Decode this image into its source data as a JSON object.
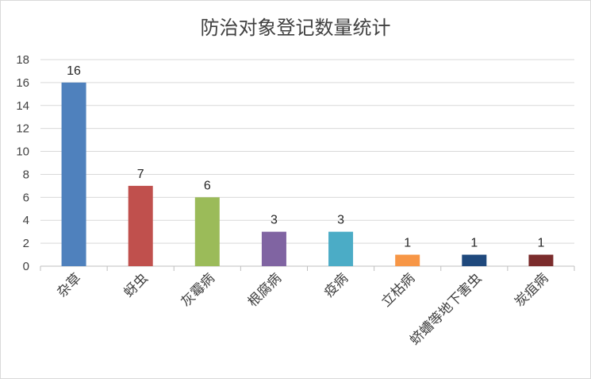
{
  "chart_data": {
    "type": "bar",
    "title": "防治对象登记数量统计",
    "categories": [
      "杂草",
      "蚜虫",
      "灰霉病",
      "根腐病",
      "疫病",
      "立枯病",
      "蛴螬等地下害虫",
      "炭疽病"
    ],
    "values": [
      16,
      7,
      6,
      3,
      3,
      1,
      1,
      1
    ],
    "colors": [
      "#4f81bd",
      "#c0504d",
      "#9bbb59",
      "#8064a2",
      "#4bacc6",
      "#f79646",
      "#1f497d",
      "#7b2c2c"
    ],
    "xlabel": "",
    "ylabel": "",
    "ylim": [
      0,
      18
    ],
    "yticks": [
      0,
      2,
      4,
      6,
      8,
      10,
      12,
      14,
      16,
      18
    ],
    "grid": true,
    "legend": "none",
    "data_labels": true
  }
}
